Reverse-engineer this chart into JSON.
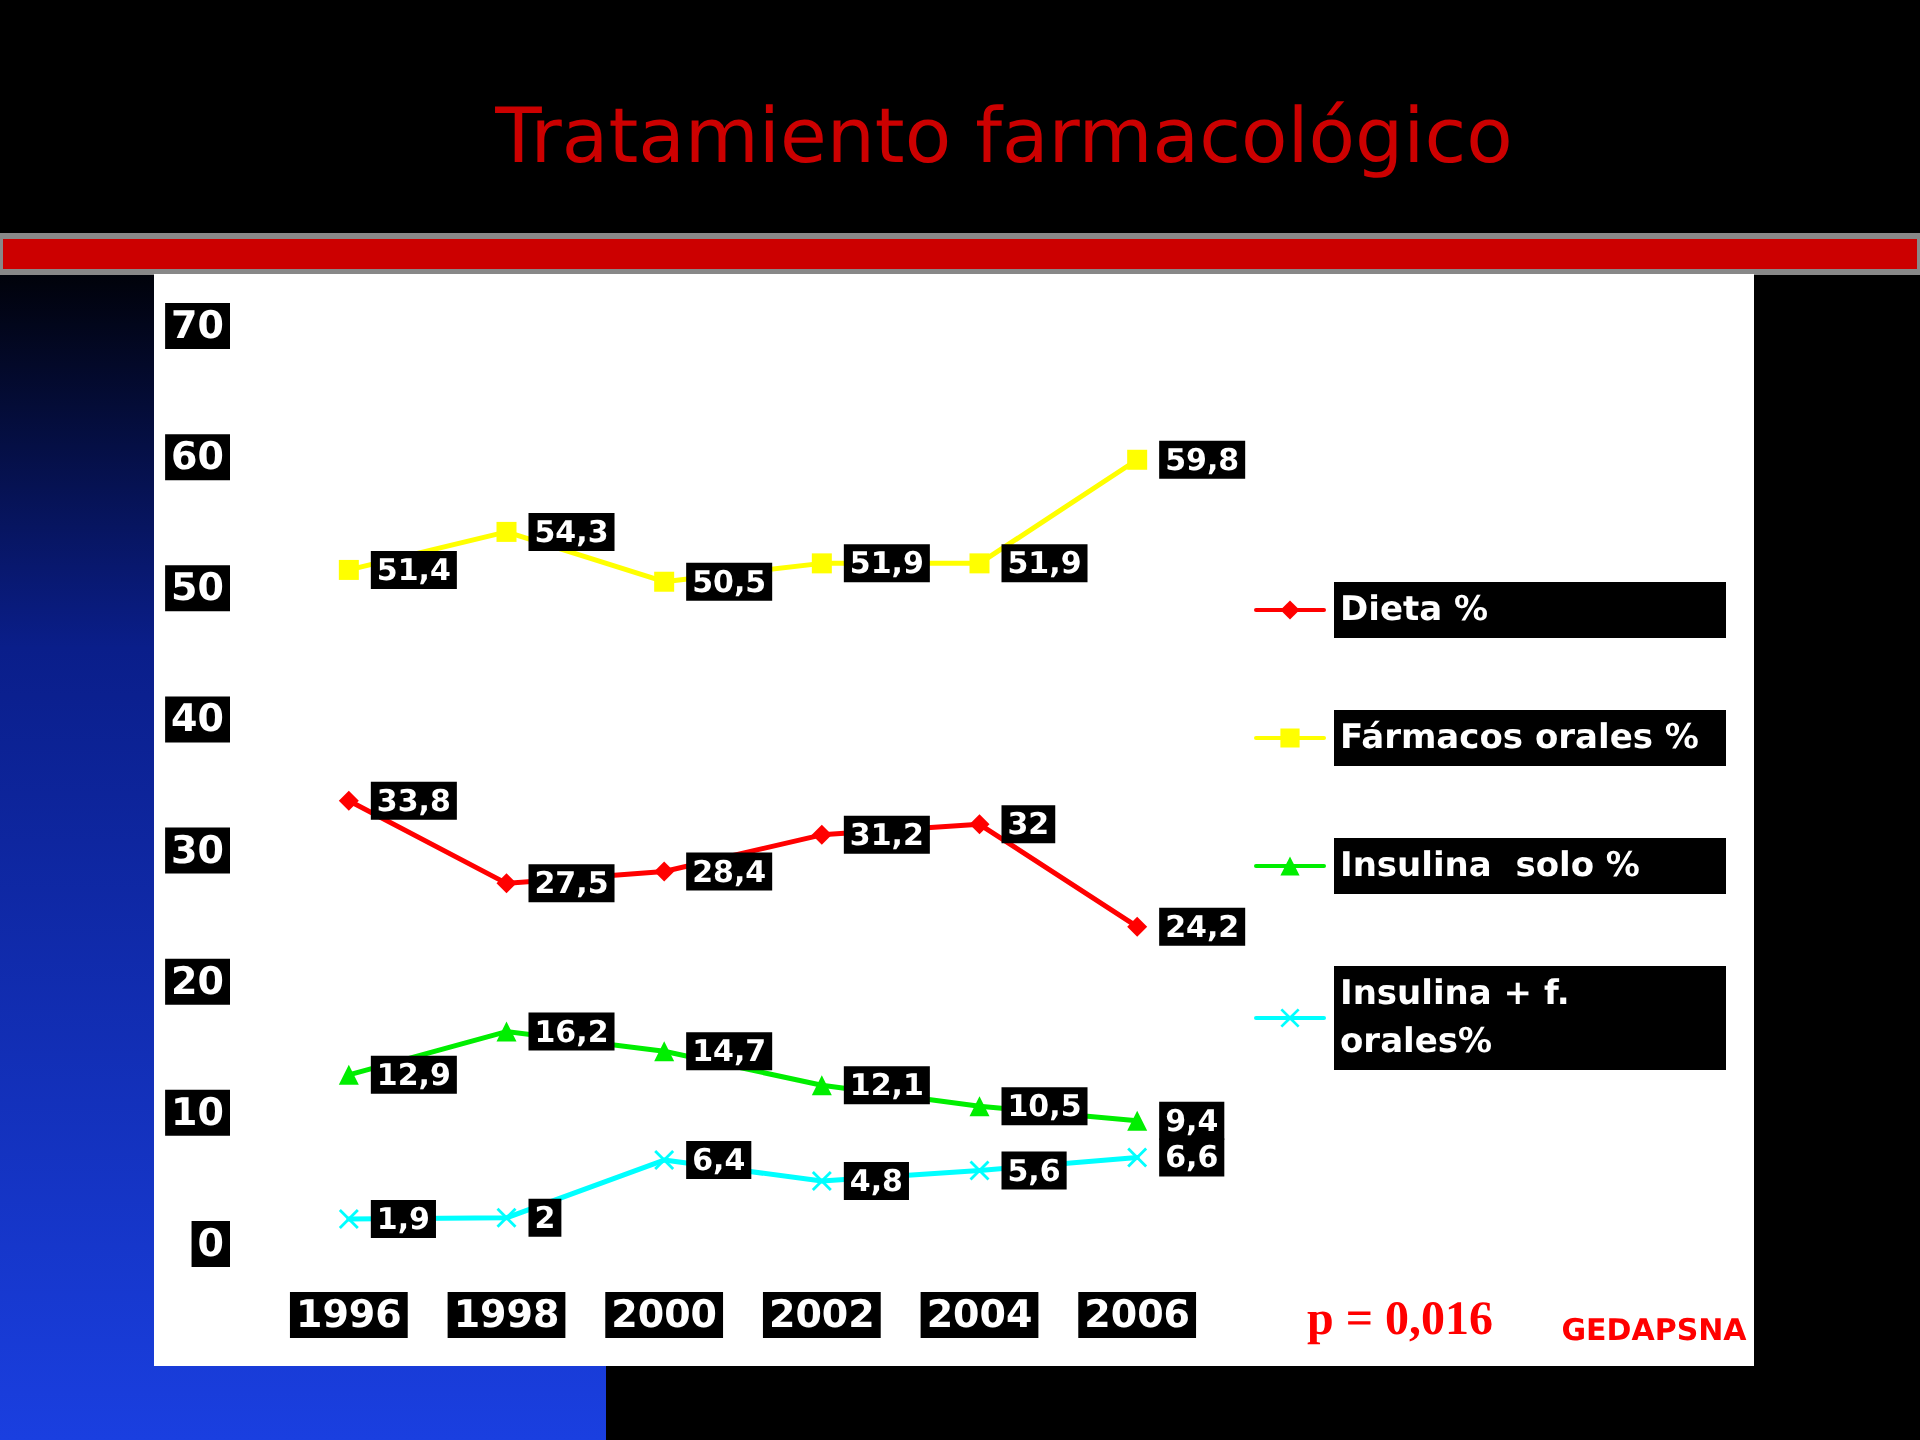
{
  "chart_data": {
    "type": "line",
    "title": "Tratamiento farmacológico",
    "categories": [
      "1996",
      "1998",
      "2000",
      "2002",
      "2004",
      "2006"
    ],
    "series": [
      {
        "name": "Dieta %",
        "color": "#ff0000",
        "marker": "diamond",
        "values": [
          33.8,
          27.5,
          28.4,
          31.2,
          32,
          24.2
        ],
        "value_labels": [
          "33,8",
          "27,5",
          "28,4",
          "31,2",
          "32",
          "24,2"
        ]
      },
      {
        "name": "Fármacos orales %",
        "color": "#ffff00",
        "marker": "square",
        "values": [
          51.4,
          54.3,
          50.5,
          51.9,
          51.9,
          59.8
        ],
        "value_labels": [
          "51,4",
          "54,3",
          "50,5",
          "51,9",
          "51,9",
          "59,8"
        ]
      },
      {
        "name": "Insulina  solo %",
        "color": "#00ee00",
        "marker": "triangle",
        "values": [
          12.9,
          16.2,
          14.7,
          12.1,
          10.5,
          9.4
        ],
        "value_labels": [
          "12,9",
          "16,2",
          "14,7",
          "12,1",
          "10,5",
          "9,4"
        ]
      },
      {
        "name": "Insulina + f. orales%",
        "color": "#00ffff",
        "marker": "cross",
        "values": [
          1.9,
          2,
          6.4,
          4.8,
          5.6,
          6.6
        ],
        "value_labels": [
          "1,9",
          "2",
          "6,4",
          "4,8",
          "5,6",
          "6,6"
        ]
      }
    ],
    "ylim": [
      0,
      70
    ],
    "yticks": [
      0,
      10,
      20,
      30,
      40,
      50,
      60,
      70
    ],
    "grid": false,
    "legend": "right",
    "annotations": [
      "p = 0,016",
      "GEDAPSNA"
    ]
  }
}
